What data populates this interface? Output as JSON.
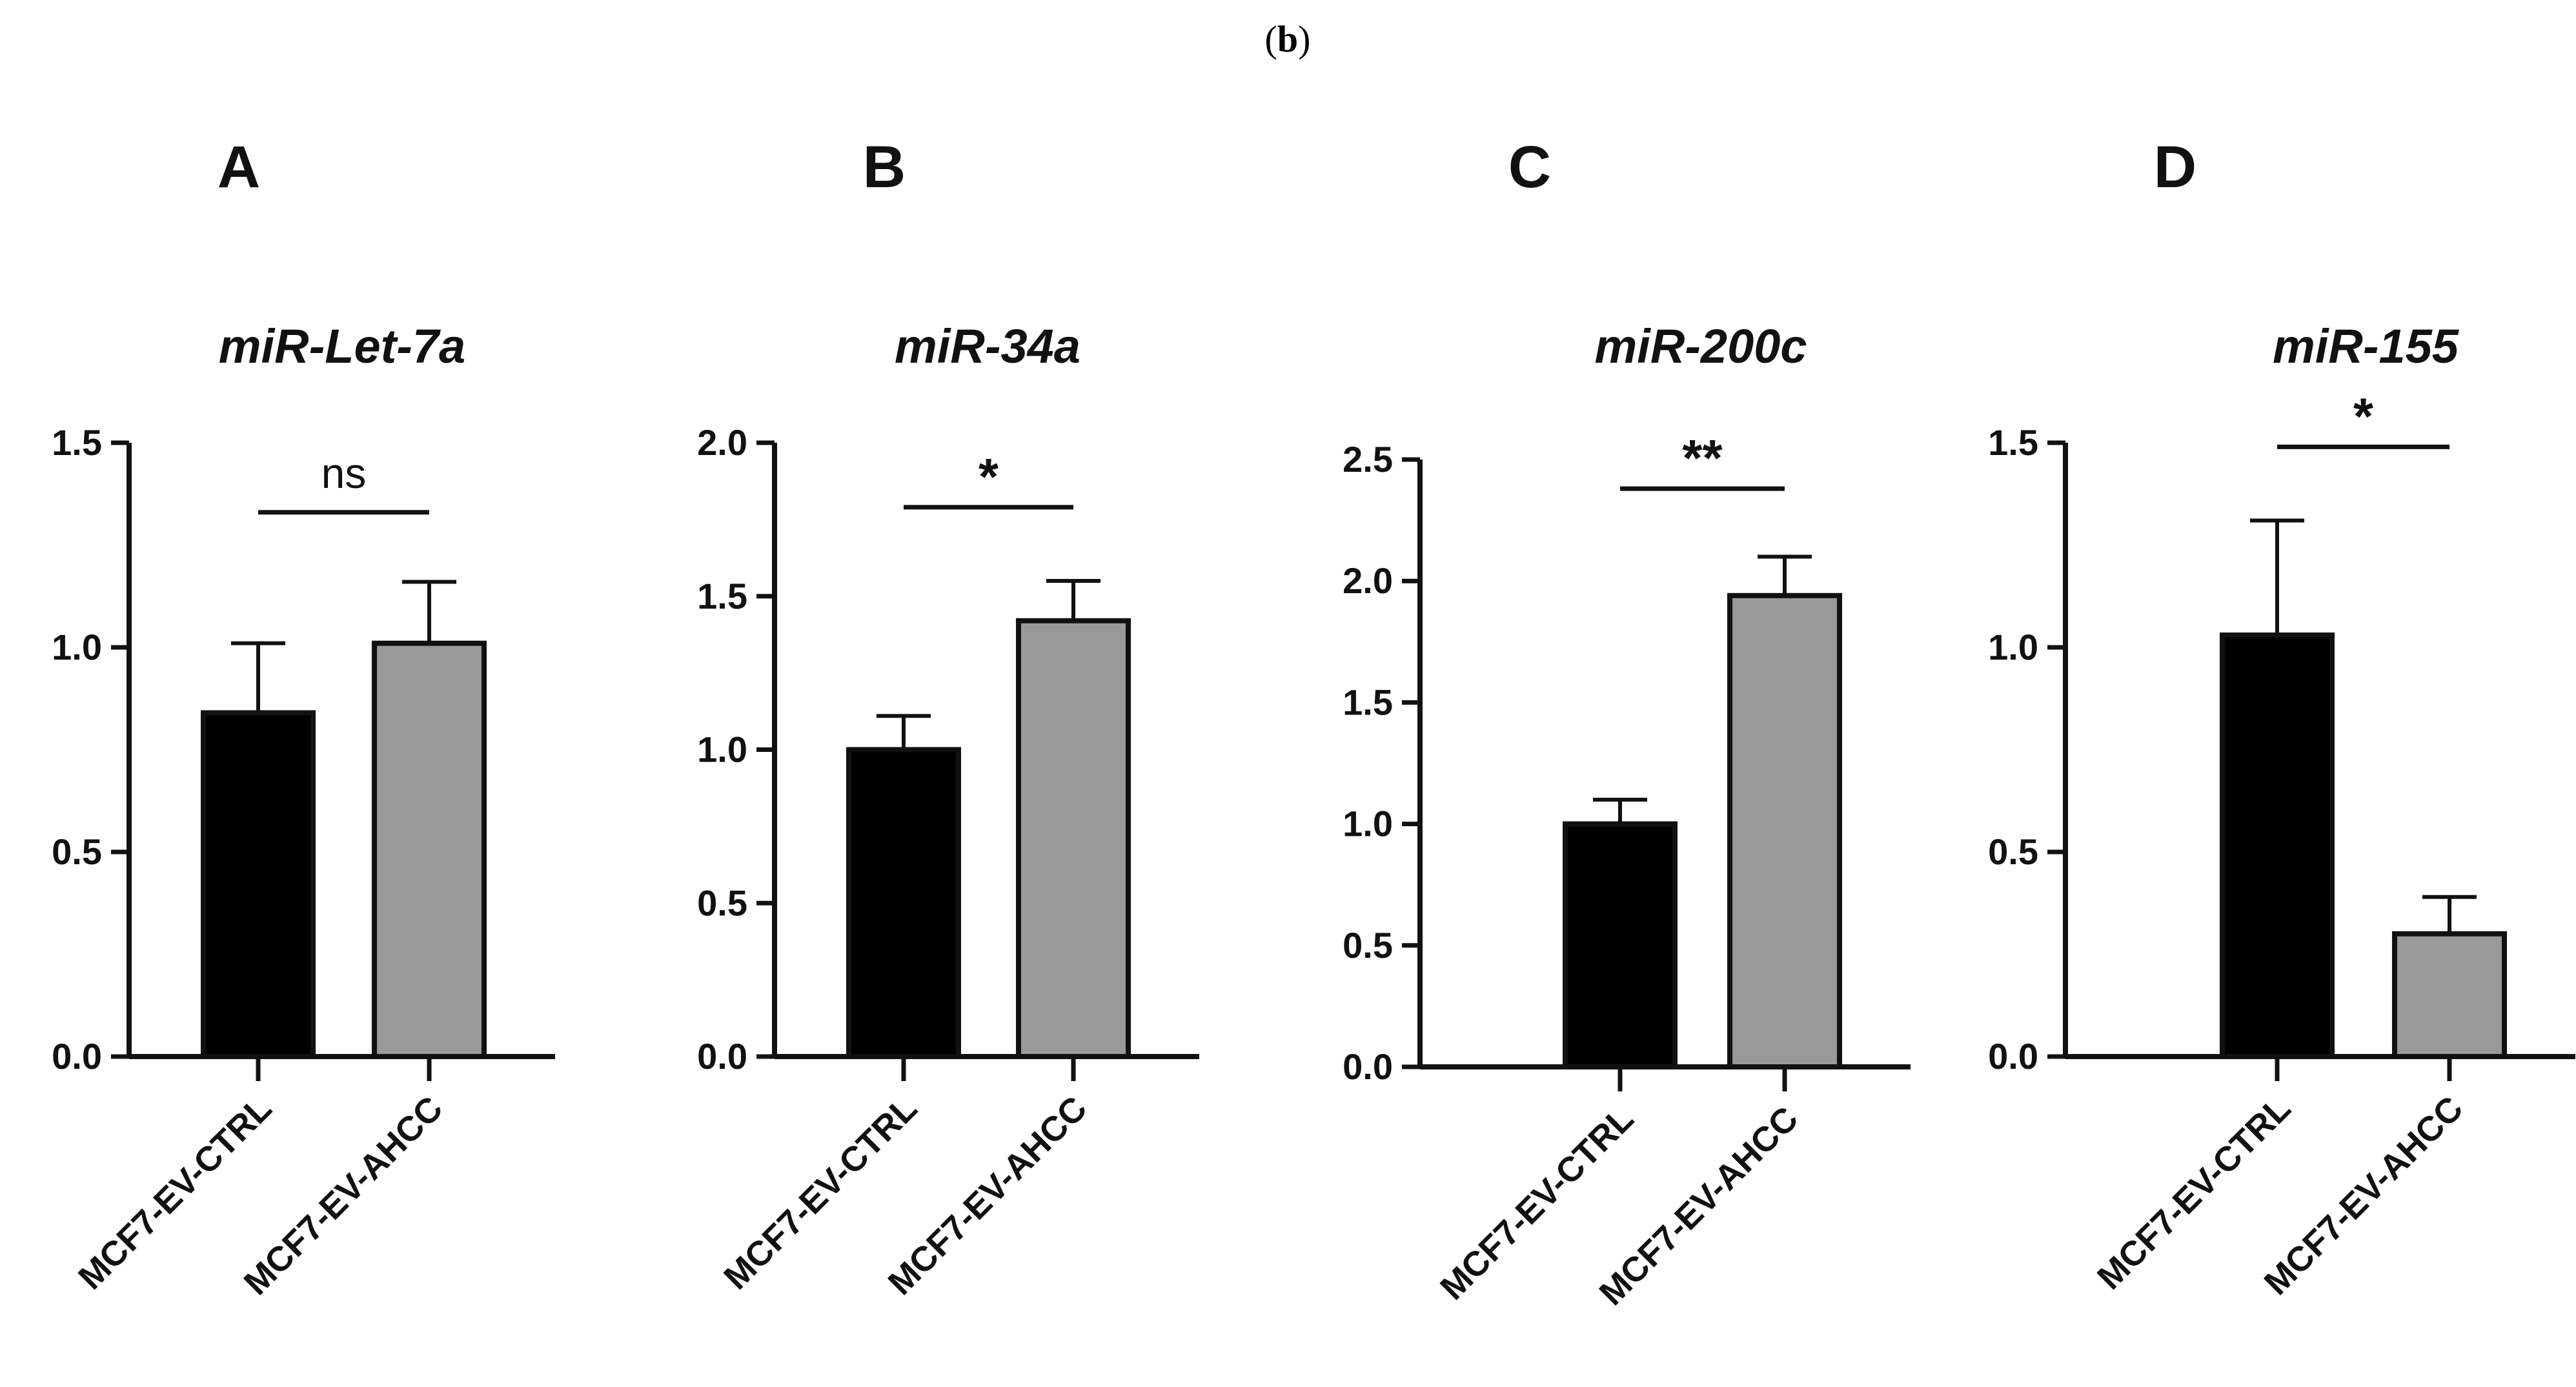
{
  "figure": {
    "label_prefix": "(",
    "label_letter": "b",
    "label_suffix": ")"
  },
  "chart_data": [
    {
      "type": "bar",
      "panel": "A",
      "title": "miR-Let-7a",
      "categories": [
        "MCF7-EV-CTRL",
        "MCF7-EV-AHCC"
      ],
      "values": [
        0.84,
        1.01
      ],
      "errors": [
        0.17,
        0.15
      ],
      "colors": [
        "#000000",
        "#999999"
      ],
      "ylim": [
        0,
        1.5
      ],
      "yticks": [
        "0.0",
        "0.5",
        "1.0",
        "1.5"
      ],
      "significance": {
        "label": "ns",
        "y": 1.33
      },
      "xlabel": "",
      "ylabel": ""
    },
    {
      "type": "bar",
      "panel": "B",
      "title": "miR-34a",
      "categories": [
        "MCF7-EV-CTRL",
        "MCF7-EV-AHCC"
      ],
      "values": [
        1.0,
        1.42
      ],
      "errors": [
        0.11,
        0.13
      ],
      "colors": [
        "#000000",
        "#999999"
      ],
      "ylim": [
        0,
        2.0
      ],
      "yticks": [
        "0.0",
        "0.5",
        "1.0",
        "1.5",
        "2.0"
      ],
      "significance": {
        "label": "*",
        "y": 1.79
      },
      "xlabel": "",
      "ylabel": ""
    },
    {
      "type": "bar",
      "panel": "C",
      "title": "miR-200c",
      "categories": [
        "MCF7-EV-CTRL",
        "MCF7-EV-AHCC"
      ],
      "values": [
        1.0,
        1.94
      ],
      "errors": [
        0.1,
        0.16
      ],
      "colors": [
        "#000000",
        "#999999"
      ],
      "ylim": [
        0,
        2.5
      ],
      "yticks": [
        "0.0",
        "0.5",
        "1.0",
        "1.5",
        "2.0",
        "2.5"
      ],
      "significance": {
        "label": "**",
        "y": 2.38
      },
      "xlabel": "",
      "ylabel": ""
    },
    {
      "type": "bar",
      "panel": "D",
      "title": "miR-155",
      "categories": [
        "MCF7-EV-CTRL",
        "MCF7-EV-AHCC"
      ],
      "values": [
        1.03,
        0.3
      ],
      "errors": [
        0.28,
        0.09
      ],
      "colors": [
        "#000000",
        "#999999"
      ],
      "ylim": [
        0,
        1.5
      ],
      "yticks": [
        "0.0",
        "0.5",
        "1.0",
        "1.5"
      ],
      "significance": {
        "label": "*",
        "y": 1.49
      },
      "xlabel": "",
      "ylabel": ""
    }
  ]
}
